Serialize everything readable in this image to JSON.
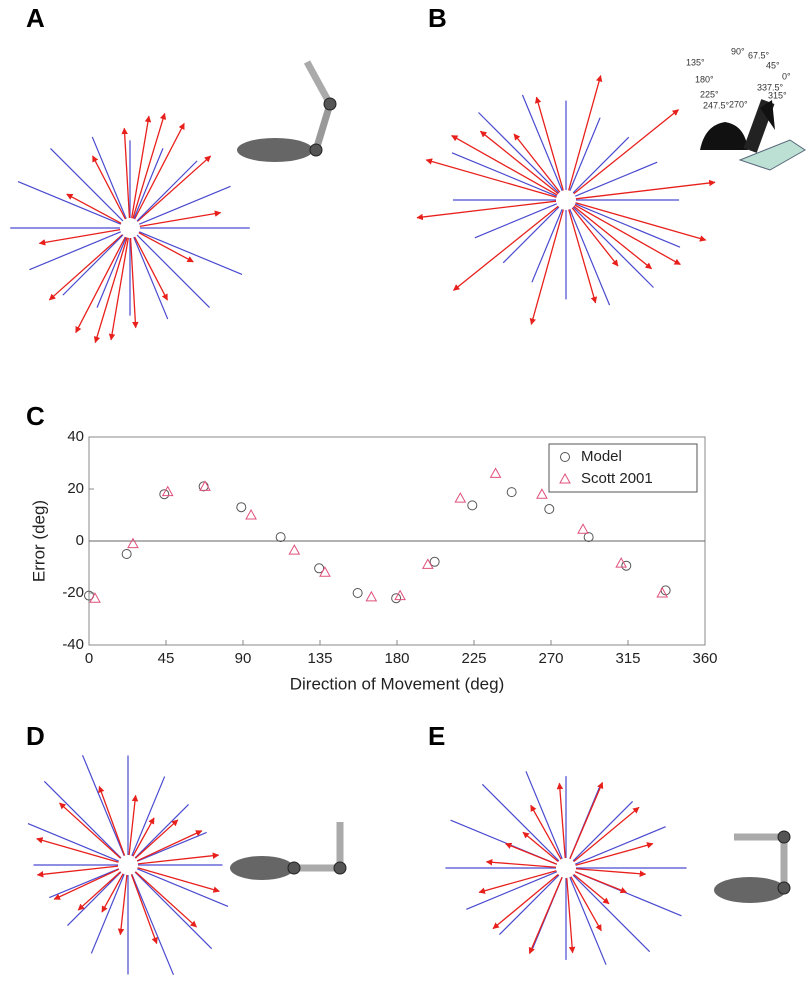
{
  "panel_labels": [
    "A",
    "B",
    "C",
    "D",
    "E"
  ],
  "panel_b_angle_labels": [
    "135°",
    "90°",
    "67.5°",
    "45°",
    "180°",
    "0°",
    "337.5°",
    "225°",
    "315°",
    "247.5°",
    "270°"
  ],
  "chart_data": {
    "type": "scatter",
    "x_label": "Direction of Movement (deg)",
    "y_label": "Error (deg)",
    "xlim": [
      0,
      360
    ],
    "xticks": [
      0,
      45,
      90,
      135,
      180,
      225,
      270,
      315,
      360
    ],
    "ylim": [
      -40,
      40
    ],
    "yticks": [
      -40,
      -20,
      0,
      20,
      40
    ],
    "legend": "upper right",
    "series": [
      {
        "name": "Model",
        "marker": "circle",
        "color": "#555555",
        "x": [
          0,
          22,
          44,
          67,
          89,
          112,
          134.5,
          157,
          179.5,
          202,
          224,
          247,
          269,
          292,
          314,
          337
        ],
        "values": [
          -21,
          -5,
          18,
          21,
          13,
          1.5,
          -10.5,
          -20,
          -22,
          -8,
          13.7,
          18.8,
          12.3,
          1.5,
          -9.5,
          -19
        ]
      },
      {
        "name": "Scott 2001",
        "marker": "triangle",
        "color": "#e0507a",
        "x": [
          3.5,
          25.7,
          46,
          67.8,
          94.7,
          120,
          137.9,
          165,
          181.8,
          198,
          217,
          237.6,
          264.7,
          288.7,
          311,
          335
        ],
        "values": [
          -22,
          -1,
          19,
          21,
          10,
          -3.5,
          -12,
          -21.5,
          -21,
          -9,
          16.5,
          26,
          18,
          4.5,
          -8.5,
          -20
        ]
      }
    ]
  }
}
